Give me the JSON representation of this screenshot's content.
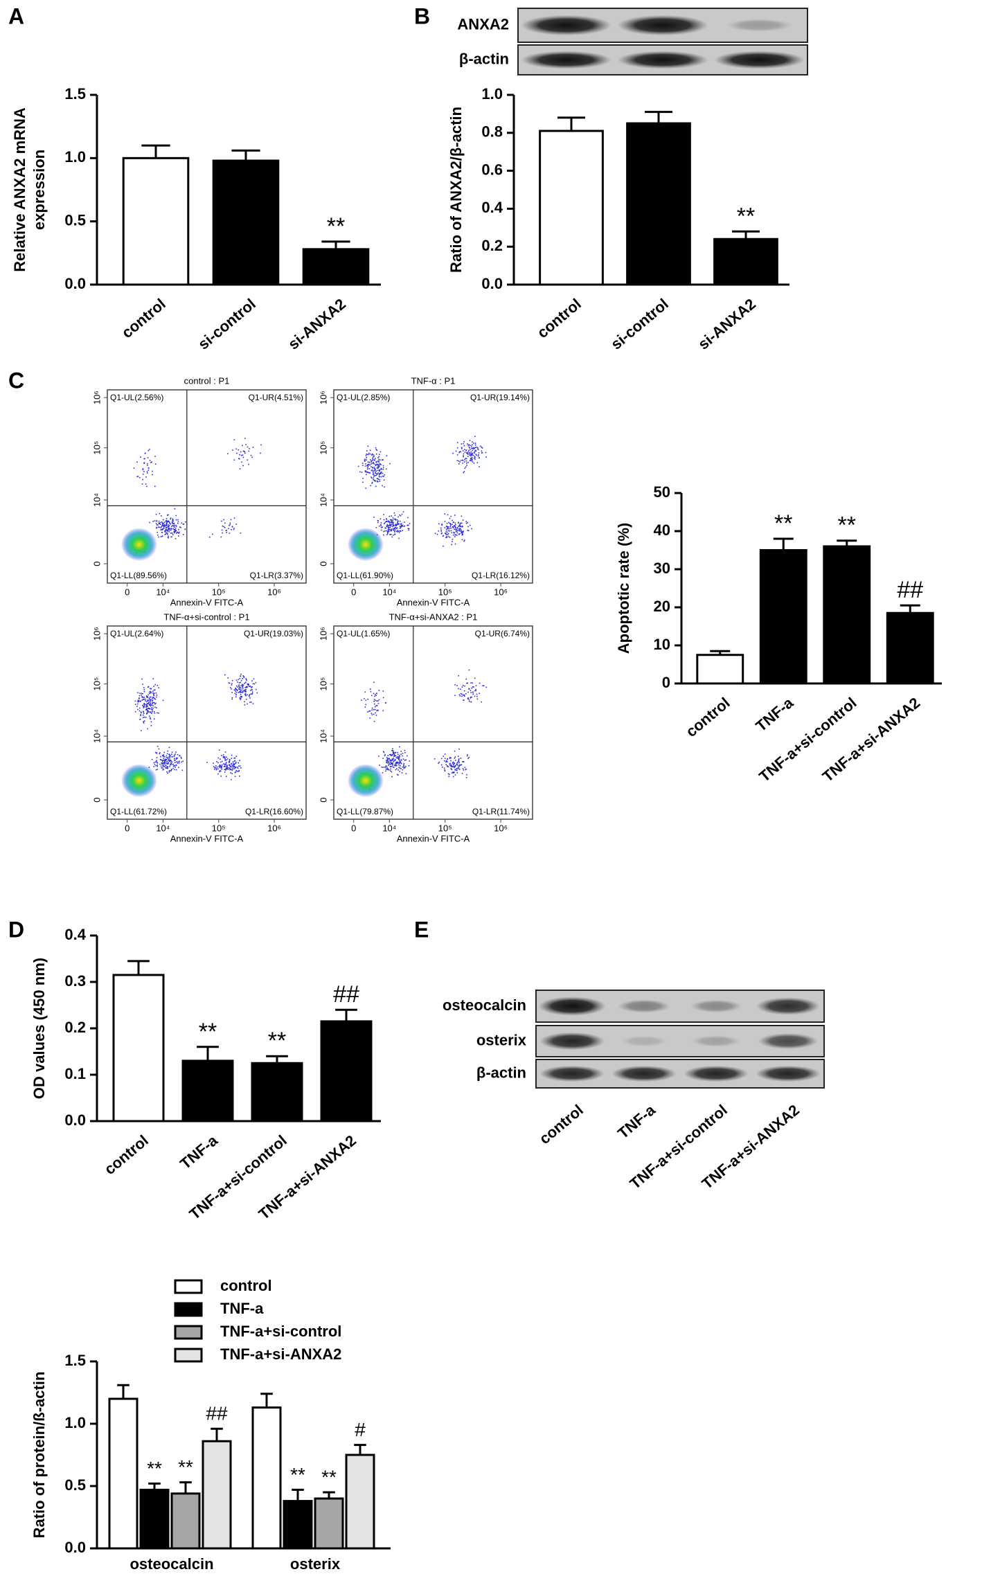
{
  "panels": [
    "A",
    "B",
    "C",
    "D",
    "E"
  ],
  "blots": [
    {
      "rows": [
        "ANXA2",
        "β-actin"
      ]
    },
    {
      "rows": [
        "osteocalcin",
        "osterix",
        "β-actin"
      ],
      "lanes": [
        "control",
        "TNF-a",
        "TNF-a+si-control",
        "TNF-a+si-ANXA2"
      ]
    }
  ],
  "flow_plots": {
    "tick_labels": [
      "0",
      "10⁴",
      "10⁵",
      "10⁶"
    ],
    "plots": [
      {
        "title": "control : P1",
        "UL": "Q1-UL(2.56%)",
        "UR": "Q1-UR(4.51%)",
        "LL": "Q1-LL(89.56%)",
        "LR": "Q1-LR(3.37%)",
        "xlabel": "Annexin-V FITC-A"
      },
      {
        "title": "TNF-α : P1",
        "UL": "Q1-UL(2.85%)",
        "UR": "Q1-UR(19.14%)",
        "LL": "Q1-LL(61.90%)",
        "LR": "Q1-LR(16.12%)",
        "xlabel": "Annexin-V FITC-A"
      },
      {
        "title": "TNF-α+si-control : P1",
        "UL": "Q1-UL(2.64%)",
        "UR": "Q1-UR(19.03%)",
        "LL": "Q1-LL(61.72%)",
        "LR": "Q1-LR(16.60%)",
        "xlabel": "Annexin-V FITC-A"
      },
      {
        "title": "TNF-α+si-ANXA2 : P1",
        "UL": "Q1-UL(1.65%)",
        "UR": "Q1-UR(6.74%)",
        "LL": "Q1-LL(79.87%)",
        "LR": "Q1-LR(11.74%)",
        "xlabel": "Annexin-V FITC-A"
      }
    ]
  },
  "chart_data": [
    {
      "type": "bar",
      "ylabel": [
        "Relative ANXA2 mRNA",
        "expression"
      ],
      "categories": [
        "control",
        "si-control",
        "si-ANXA2"
      ],
      "values": [
        1.0,
        0.98,
        0.28
      ],
      "errors": [
        0.1,
        0.08,
        0.06
      ],
      "colors": [
        "#ffffff",
        "#000000",
        "#000000"
      ],
      "annotations": [
        null,
        null,
        "**"
      ],
      "ylim": [
        0,
        1.5
      ],
      "yticks": [
        {
          "value": 0,
          "label": "0.0"
        },
        0.5,
        {
          "value": 1,
          "label": "1.0"
        },
        1.5
      ]
    },
    {
      "type": "bar",
      "ylabel": [
        "Ratio of ANXA2/β-actin"
      ],
      "categories": [
        "control",
        "si-control",
        "si-ANXA2"
      ],
      "values": [
        0.81,
        0.85,
        0.24
      ],
      "errors": [
        0.07,
        0.06,
        0.04
      ],
      "colors": [
        "#ffffff",
        "#000000",
        "#000000"
      ],
      "annotations": [
        null,
        null,
        "**"
      ],
      "ylim": [
        0,
        1.0
      ],
      "yticks": [
        {
          "value": 0,
          "label": "0.0"
        },
        0.2,
        0.4,
        0.6,
        0.8,
        {
          "value": 1,
          "label": "1.0"
        }
      ]
    },
    {
      "type": "bar",
      "ylabel": [
        "Apoptotic rate (%)"
      ],
      "categories": [
        "control",
        "TNF-a",
        "TNF-a+si-control",
        "TNF-a+si-ANXA2"
      ],
      "values": [
        7.5,
        35,
        36,
        18.5
      ],
      "errors": [
        1,
        3,
        1.5,
        2
      ],
      "colors": [
        "#ffffff",
        "#000000",
        "#000000",
        "#000000"
      ],
      "annotations": [
        null,
        "**",
        "**",
        "##"
      ],
      "ylim": [
        0,
        50
      ],
      "yticks": [
        0,
        10,
        20,
        30,
        40,
        50
      ]
    },
    {
      "type": "bar",
      "ylabel": [
        "OD values (450 nm)"
      ],
      "categories": [
        "control",
        "TNF-a",
        "TNF-a+si-control",
        "TNF-a+si-ANXA2"
      ],
      "values": [
        0.315,
        0.13,
        0.125,
        0.215
      ],
      "errors": [
        0.03,
        0.03,
        0.015,
        0.025
      ],
      "colors": [
        "#ffffff",
        "#000000",
        "#000000",
        "#000000"
      ],
      "annotations": [
        null,
        "**",
        "**",
        "##"
      ],
      "ylim": [
        0,
        0.4
      ],
      "yticks": [
        {
          "value": 0,
          "label": "0.0"
        },
        0.1,
        0.2,
        0.3,
        0.4
      ]
    },
    {
      "type": "grouped_bar",
      "ylabel": [
        "Ratio of protein/ß-actin"
      ],
      "categories": [
        "osteocalcin",
        "osterix"
      ],
      "series": [
        {
          "name": "control",
          "color": "#ffffff",
          "values": [
            1.2,
            1.13
          ],
          "errors": [
            0.11,
            0.11
          ],
          "annotations": [
            null,
            null
          ]
        },
        {
          "name": "TNF-a",
          "color": "#000000",
          "values": [
            0.47,
            0.38
          ],
          "errors": [
            0.05,
            0.09
          ],
          "annotations": [
            "**",
            "**"
          ]
        },
        {
          "name": "TNF-a+si-control",
          "color": "#a6a6a6",
          "values": [
            0.44,
            0.4
          ],
          "errors": [
            0.09,
            0.05
          ],
          "annotations": [
            "**",
            "**"
          ]
        },
        {
          "name": "TNF-a+si-ANXA2",
          "color": "#e3e3e3",
          "values": [
            0.86,
            0.75
          ],
          "errors": [
            0.1,
            0.08
          ],
          "annotations": [
            "##",
            "#"
          ]
        }
      ],
      "ylim": [
        0,
        1.5
      ],
      "yticks": [
        {
          "value": 0,
          "label": "0.0"
        },
        0.5,
        {
          "value": 1,
          "label": "1.0"
        },
        1.5
      ]
    }
  ]
}
